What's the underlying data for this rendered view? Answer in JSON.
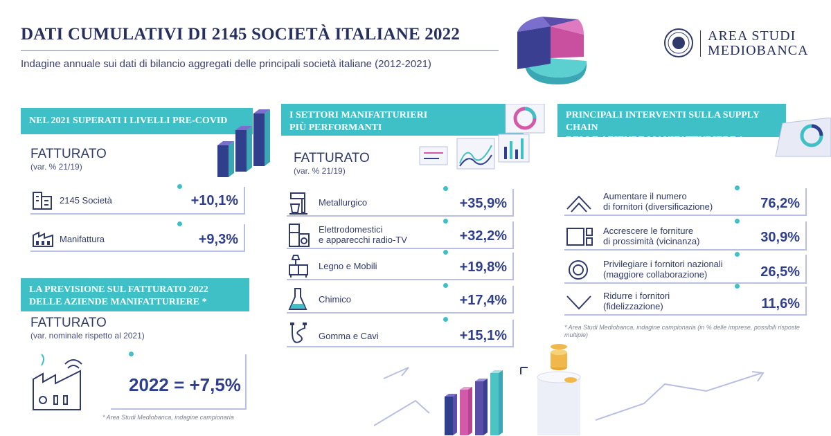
{
  "header": {
    "title": "DATI CUMULATIVI DI 2145 SOCIETÀ ITALIANE 2022",
    "subtitle": "Indagine annuale sui dati di bilancio aggregati delle principali società italiane (2012-2021)"
  },
  "logo": {
    "line1": "AREA STUDI",
    "line2": "MEDIOBANCA"
  },
  "colors": {
    "accent": "#3fc0c6",
    "navy": "#2f3f8c",
    "purple": "#5a4fa8",
    "pink": "#d35aa8",
    "teal": "#4cc4c4"
  },
  "covid": {
    "banner": "NEL 2021 SUPERATI I LIVELLI PRE-COVID",
    "label": "FATTURATO",
    "sub": "(var. % 21/19)",
    "rows": [
      {
        "icon": "buildings-icon",
        "label": "2145 Società",
        "value": "+10,1%"
      },
      {
        "icon": "factory-icon",
        "label": "Manifattura",
        "value": "+9,3%"
      }
    ]
  },
  "forecast": {
    "banner_line1": "LA PREVISIONE SUL FATTURATO 2022",
    "banner_line2": "DELLE AZIENDE MANIFATTURIERE *",
    "label": "FATTURATO",
    "sub": "(var. nominale rispetto al 2021)",
    "value": "2022 = +7,5%",
    "note": "* Area Studi Mediobanca, indagine campionaria"
  },
  "sectors": {
    "banner_line1": "I SETTORI MANIFATTURIERI",
    "banner_line2": "PIÙ PERFORMANTI",
    "label": "FATTURATO",
    "sub": "(var. % 21/19)",
    "rows": [
      {
        "icon": "mixer-icon",
        "line1": "Metallurgico",
        "line2": "",
        "value": "+35,9%"
      },
      {
        "icon": "appliances-icon",
        "line1": "Elettrodomestici",
        "line2": "e apparecchi radio-TV",
        "value": "+32,2%"
      },
      {
        "icon": "furniture-icon",
        "line1": "Legno e Mobili",
        "line2": "",
        "value": "+19,8%"
      },
      {
        "icon": "flask-icon",
        "line1": "Chimico",
        "line2": "",
        "value": "+17,4%"
      },
      {
        "icon": "cable-icon",
        "line1": "Gomma e Cavi",
        "line2": "",
        "value": "+15,1%"
      }
    ]
  },
  "supply": {
    "banner_line1": "PRINCIPALI INTERVENTI SULLA SUPPLY CHAIN",
    "banner_line2": "DELLE AZIENDE MANIFATTURIERE *",
    "rows": [
      {
        "icon": "chevron-up-icon",
        "line1": "Aumentare il numero",
        "line2": "di fornitori (diversificazione)",
        "value": "76,2%"
      },
      {
        "icon": "squares-icon",
        "line1": "Accrescere le forniture",
        "line2": "di prossimità (vicinanza)",
        "value": "30,9%"
      },
      {
        "icon": "target-icon",
        "line1": "Privilegiare i fornitori nazionali",
        "line2": "(maggiore collaborazione)",
        "value": "26,5%"
      },
      {
        "icon": "chevron-down-icon",
        "line1": "Ridurre i fornitori",
        "line2": "(fidelizzazione)",
        "value": "11,6%"
      }
    ],
    "note": "* Area Studi Mediobanca, indagine campionaria (in % delle imprese, possibili risposte multiple)"
  }
}
